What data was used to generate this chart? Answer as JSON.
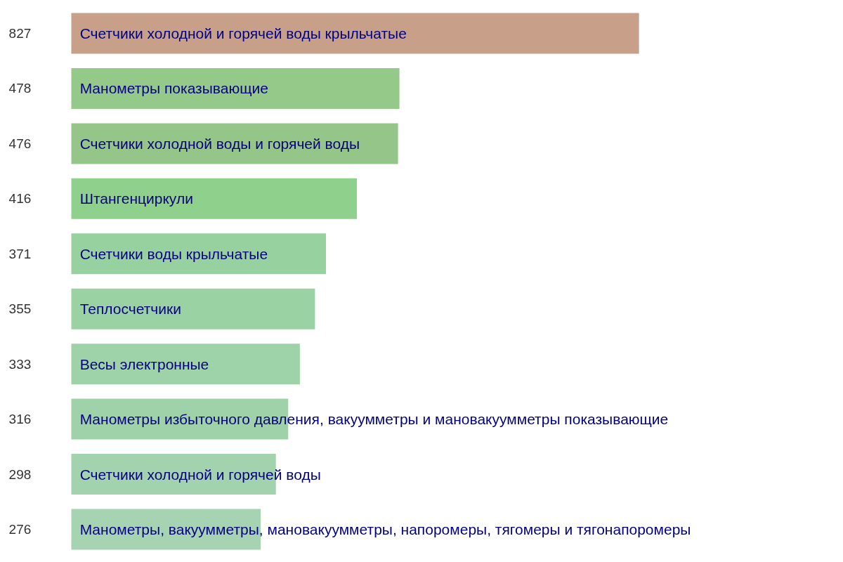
{
  "chart_data": {
    "type": "bar",
    "orientation": "horizontal",
    "data_labels": true,
    "categories": [
      "Счетчики холодной и горячей воды крыльчатые",
      "Манометры показывающие",
      "Счетчики холодной воды и горячей воды",
      "Штангенциркули",
      "Счетчики воды крыльчатые",
      "Теплосчетчики",
      "Весы электронные",
      "Манометры избыточного давления, вакуумметры и мановакуумметры показывающие",
      "Счетчики холодной и горячей воды",
      "Манометры, вакуумметры, мановакуумметры, напоромеры, тягомеры и тягонапоромеры"
    ],
    "values": [
      827,
      478,
      476,
      416,
      371,
      355,
      333,
      316,
      298,
      276
    ],
    "colors": [
      "#c8a08a",
      "#95c98a",
      "#96c58a",
      "#8fd08c",
      "#98d1a0",
      "#9ad2a4",
      "#9ed2a8",
      "#a0d2aa",
      "#a3d2ae",
      "#a6d3b2"
    ]
  }
}
